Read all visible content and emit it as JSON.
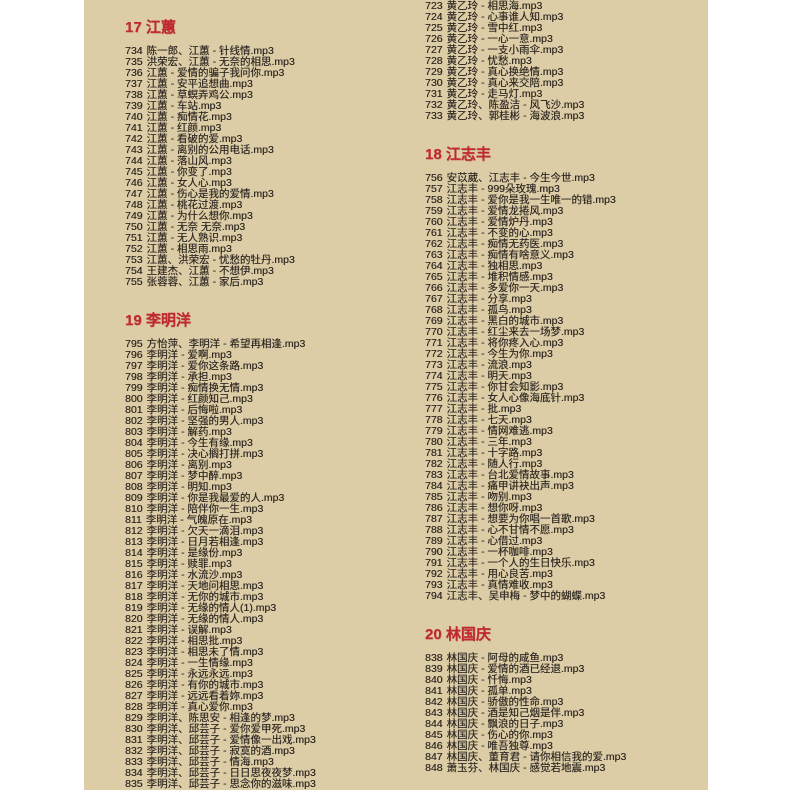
{
  "meta": {
    "colors": {
      "paper_background": "#ddcda7",
      "margin_background": "#ffffff",
      "header_accent": "#c1282e",
      "body_text": "#2a2520"
    }
  },
  "document": {
    "left_column": {
      "sections": [
        {
          "header": "17 江蕙",
          "tracks": [
            {
              "n": "734",
              "f": "陈一郎、江蕙 - 针线情.mp3"
            },
            {
              "n": "735",
              "f": "洪荣宏、江蕙 - 无奈的相思.mp3"
            },
            {
              "n": "736",
              "f": "江蕙 - 爱情的骗子我问你.mp3"
            },
            {
              "n": "737",
              "f": "江蕙 - 安平追想曲.mp3"
            },
            {
              "n": "738",
              "f": "江蕙 - 草螟弄鸡公.mp3"
            },
            {
              "n": "739",
              "f": "江蕙 - 车站.mp3"
            },
            {
              "n": "740",
              "f": "江蕙 - 痴情花.mp3"
            },
            {
              "n": "741",
              "f": "江蕙 - 红颜.mp3"
            },
            {
              "n": "742",
              "f": "江蕙 - 看破的爱.mp3"
            },
            {
              "n": "743",
              "f": "江蕙 - 离别的公用电话.mp3"
            },
            {
              "n": "744",
              "f": "江蕙 - 落山风.mp3"
            },
            {
              "n": "745",
              "f": "江蕙 - 你变了.mp3"
            },
            {
              "n": "746",
              "f": "江蕙 - 女人心.mp3"
            },
            {
              "n": "747",
              "f": "江蕙 - 伤心是我的爱情.mp3"
            },
            {
              "n": "748",
              "f": "江蕙 - 桃花过渡.mp3"
            },
            {
              "n": "749",
              "f": "江蕙 - 为什么想你.mp3"
            },
            {
              "n": "750",
              "f": "江蕙 - 无奈 无奈.mp3"
            },
            {
              "n": "751",
              "f": "江蕙 - 无人熟识.mp3"
            },
            {
              "n": "752",
              "f": "江蕙 - 相思雨.mp3"
            },
            {
              "n": "753",
              "f": "江蕙、洪荣宏 - 忧愁的牡丹.mp3"
            },
            {
              "n": "754",
              "f": "王建杰、江蕙 - 不想伊.mp3"
            },
            {
              "n": "755",
              "f": "张蓉蓉、江蕙 - 家后.mp3"
            }
          ]
        },
        {
          "header": "19 李明洋",
          "tracks": [
            {
              "n": "795",
              "f": "方怡萍、李明洋 - 希望再相逢.mp3"
            },
            {
              "n": "796",
              "f": "李明洋 - 爱啊.mp3"
            },
            {
              "n": "797",
              "f": "李明洋 - 爱你这条路.mp3"
            },
            {
              "n": "798",
              "f": "李明洋 - 承担.mp3"
            },
            {
              "n": "799",
              "f": "李明洋 - 痴情换无情.mp3"
            },
            {
              "n": "800",
              "f": "李明洋 - 红颜知己.mp3"
            },
            {
              "n": "801",
              "f": "李明洋 - 后悔啦.mp3"
            },
            {
              "n": "802",
              "f": "李明洋 - 坚强的男人.mp3"
            },
            {
              "n": "803",
              "f": "李明洋 - 解药.mp3"
            },
            {
              "n": "804",
              "f": "李明洋 - 今生有缘.mp3"
            },
            {
              "n": "805",
              "f": "李明洋 - 决心搁打拼.mp3"
            },
            {
              "n": "806",
              "f": "李明洋 - 离别.mp3"
            },
            {
              "n": "807",
              "f": "李明洋 - 梦中醉.mp3"
            },
            {
              "n": "808",
              "f": "李明洋 - 明知.mp3"
            },
            {
              "n": "809",
              "f": "李明洋 - 你是我最爱的人.mp3"
            },
            {
              "n": "810",
              "f": "李明洋 - 陪伴你一生.mp3"
            },
            {
              "n": "811",
              "f": "李明洋 - 气魄原在.mp3"
            },
            {
              "n": "812",
              "f": "李明洋 - 欠天一滴泪.mp3"
            },
            {
              "n": "813",
              "f": "李明洋 - 日月若相逢.mp3"
            },
            {
              "n": "814",
              "f": "李明洋 - 是缘份.mp3"
            },
            {
              "n": "815",
              "f": "李明洋 - 赎罪.mp3"
            },
            {
              "n": "816",
              "f": "李明洋 - 水流沙.mp3"
            },
            {
              "n": "817",
              "f": "李明洋 - 天地问相思.mp3"
            },
            {
              "n": "818",
              "f": "李明洋 - 无你的城市.mp3"
            },
            {
              "n": "819",
              "f": "李明洋 - 无缘的情人(1).mp3"
            },
            {
              "n": "820",
              "f": "李明洋 - 无缘的情人.mp3"
            },
            {
              "n": "821",
              "f": "李明洋 - 误解.mp3"
            },
            {
              "n": "822",
              "f": "李明洋 - 相思批.mp3"
            },
            {
              "n": "823",
              "f": "李明洋 - 相思未了情.mp3"
            },
            {
              "n": "824",
              "f": "李明洋 - 一生情缘.mp3"
            },
            {
              "n": "825",
              "f": "李明洋 - 永远永远.mp3"
            },
            {
              "n": "826",
              "f": "李明洋 - 有你的城市.mp3"
            },
            {
              "n": "827",
              "f": "李明洋 - 远远看着妳.mp3"
            },
            {
              "n": "828",
              "f": "李明洋 - 真心爱你.mp3"
            },
            {
              "n": "829",
              "f": "李明洋、陈思安 - 相逢的梦.mp3"
            },
            {
              "n": "830",
              "f": "李明洋、邱芸子 - 爱你爱甲死.mp3"
            },
            {
              "n": "831",
              "f": "李明洋、邱芸子 - 爱情像一出戏.mp3"
            },
            {
              "n": "832",
              "f": "李明洋、邱芸子 - 寂寞的酒.mp3"
            },
            {
              "n": "833",
              "f": "李明洋、邱芸子 - 情海.mp3"
            },
            {
              "n": "834",
              "f": "李明洋、邱芸子 - 日日思夜夜梦.mp3"
            },
            {
              "n": "835",
              "f": "李明洋、邱芸子 - 思念你的滋味.mp3"
            }
          ]
        }
      ]
    },
    "right_column": {
      "sections": [
        {
          "header": null,
          "tracks": [
            {
              "n": "723",
              "f": "黄乙玲 - 相思海.mp3"
            },
            {
              "n": "724",
              "f": "黄乙玲 - 心事谁人知.mp3"
            },
            {
              "n": "725",
              "f": "黄乙玲 - 雪中红.mp3"
            },
            {
              "n": "726",
              "f": "黄乙玲 - 一心一意.mp3"
            },
            {
              "n": "727",
              "f": "黄乙玲 - 一支小雨伞.mp3"
            },
            {
              "n": "728",
              "f": "黄乙玲 - 忧愁.mp3"
            },
            {
              "n": "729",
              "f": "黄乙玲 - 真心换绝情.mp3"
            },
            {
              "n": "730",
              "f": "黄乙玲 - 真心来交陪.mp3"
            },
            {
              "n": "731",
              "f": "黄乙玲 - 走马灯.mp3"
            },
            {
              "n": "732",
              "f": "黄乙玲、陈盈洁 - 风飞沙.mp3"
            },
            {
              "n": "733",
              "f": "黄乙玲、郭桂彬 - 海波浪.mp3"
            }
          ]
        },
        {
          "header": "18 江志丰",
          "tracks": [
            {
              "n": "756",
              "f": "安苡葳、江志丰 - 今生今世.mp3"
            },
            {
              "n": "757",
              "f": "江志丰 - 999朵玫瑰.mp3"
            },
            {
              "n": "758",
              "f": "江志丰 - 爱你是我一生唯一的错.mp3"
            },
            {
              "n": "759",
              "f": "江志丰 - 爱情龙捲风.mp3"
            },
            {
              "n": "760",
              "f": "江志丰 - 爱情炉丹.mp3"
            },
            {
              "n": "761",
              "f": "江志丰 - 不变的心.mp3"
            },
            {
              "n": "762",
              "f": "江志丰 - 痴情无药医.mp3"
            },
            {
              "n": "763",
              "f": "江志丰 - 痴情有啥意义.mp3"
            },
            {
              "n": "764",
              "f": "江志丰 - 独相思.mp3"
            },
            {
              "n": "765",
              "f": "江志丰 - 堆积情感.mp3"
            },
            {
              "n": "766",
              "f": "江志丰 - 多爱你一天.mp3"
            },
            {
              "n": "767",
              "f": "江志丰 - 分享.mp3"
            },
            {
              "n": "768",
              "f": "江志丰 - 孤鸟.mp3"
            },
            {
              "n": "769",
              "f": "江志丰 - 黑白的城市.mp3"
            },
            {
              "n": "770",
              "f": "江志丰 - 红尘来去一场梦.mp3"
            },
            {
              "n": "771",
              "f": "江志丰 - 将你疼入心.mp3"
            },
            {
              "n": "772",
              "f": "江志丰 - 今生为你.mp3"
            },
            {
              "n": "773",
              "f": "江志丰 - 流浪.mp3"
            },
            {
              "n": "774",
              "f": "江志丰 - 明天.mp3"
            },
            {
              "n": "775",
              "f": "江志丰 - 你甘会知影.mp3"
            },
            {
              "n": "776",
              "f": "江志丰 - 女人心像海底针.mp3"
            },
            {
              "n": "777",
              "f": "江志丰 - 批.mp3"
            },
            {
              "n": "778",
              "f": "江志丰 - 七天.mp3"
            },
            {
              "n": "779",
              "f": "江志丰 - 情网难逃.mp3"
            },
            {
              "n": "780",
              "f": "江志丰 - 三年.mp3"
            },
            {
              "n": "781",
              "f": "江志丰 - 十字路.mp3"
            },
            {
              "n": "782",
              "f": "江志丰 - 随人行.mp3"
            },
            {
              "n": "783",
              "f": "江志丰 - 台北爱情故事.mp3"
            },
            {
              "n": "784",
              "f": "江志丰 - 痛甲讲袂出声.mp3"
            },
            {
              "n": "785",
              "f": "江志丰 - 吻别.mp3"
            },
            {
              "n": "786",
              "f": "江志丰 - 想你呀.mp3"
            },
            {
              "n": "787",
              "f": "江志丰 - 想要为你唱一首歌.mp3"
            },
            {
              "n": "788",
              "f": "江志丰 - 心不甘情不愿.mp3"
            },
            {
              "n": "789",
              "f": "江志丰 - 心借过.mp3"
            },
            {
              "n": "790",
              "f": "江志丰 - 一杯咖啡.mp3"
            },
            {
              "n": "791",
              "f": "江志丰 - 一个人的生日快乐.mp3"
            },
            {
              "n": "792",
              "f": "江志丰 - 用心良苦.mp3"
            },
            {
              "n": "793",
              "f": "江志丰 - 真情难收.mp3"
            },
            {
              "n": "794",
              "f": "江志丰、吴申梅 - 梦中的蝴蝶.mp3"
            }
          ]
        },
        {
          "header": "20 林国庆",
          "tracks": [
            {
              "n": "838",
              "f": "林国庆 - 阿母的咸鱼.mp3"
            },
            {
              "n": "839",
              "f": "林国庆 - 爱情的酒已经退.mp3"
            },
            {
              "n": "840",
              "f": "林国庆 - 忏悔.mp3"
            },
            {
              "n": "841",
              "f": "林国庆 - 孤单.mp3"
            },
            {
              "n": "842",
              "f": "林国庆 - 骄傲的性命.mp3"
            },
            {
              "n": "843",
              "f": "林国庆 - 酒是知己烟是伴.mp3"
            },
            {
              "n": "844",
              "f": "林国庆 - 飘浪的日子.mp3"
            },
            {
              "n": "845",
              "f": "林国庆 - 伤心的你.mp3"
            },
            {
              "n": "846",
              "f": "林国庆 - 唯吾独尊.mp3"
            },
            {
              "n": "847",
              "f": "林国庆、董育君 - 请你相信我的爱.mp3"
            },
            {
              "n": "848",
              "f": "萧玉芬、林国庆 - 感觉若地震.mp3"
            }
          ]
        }
      ]
    }
  }
}
